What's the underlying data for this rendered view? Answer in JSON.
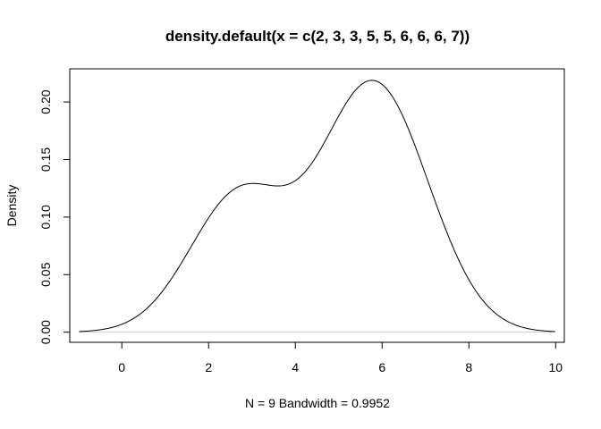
{
  "chart_data": {
    "type": "line",
    "title": "density.default(x = c(2, 3, 3, 5, 5, 6, 6, 6, 7))",
    "xlabel": "N = 9   Bandwidth = 0.9952",
    "ylabel": "Density",
    "xlim": [
      -1.2,
      10.2
    ],
    "ylim": [
      -0.0088,
      0.2288
    ],
    "x_ticks": [
      0,
      2,
      4,
      6,
      8,
      10
    ],
    "y_ticks": [
      0.0,
      0.05,
      0.1,
      0.15,
      0.2
    ],
    "x_tick_labels": [
      "0",
      "2",
      "4",
      "6",
      "8",
      "10"
    ],
    "y_tick_labels": [
      "0.00",
      "0.05",
      "0.10",
      "0.15",
      "0.20"
    ],
    "grid": false,
    "zero_line": true,
    "series": [
      {
        "line_color": "#000000",
        "kernel": "gaussian",
        "bandwidth": 0.9952,
        "observations": [
          2,
          3,
          3,
          5,
          5,
          6,
          6,
          6,
          7
        ],
        "x_range": [
          -0.986,
          9.986
        ]
      }
    ]
  },
  "colors": {
    "axis": "#000000",
    "zero_line": "#cccccc",
    "background": "#ffffff"
  }
}
